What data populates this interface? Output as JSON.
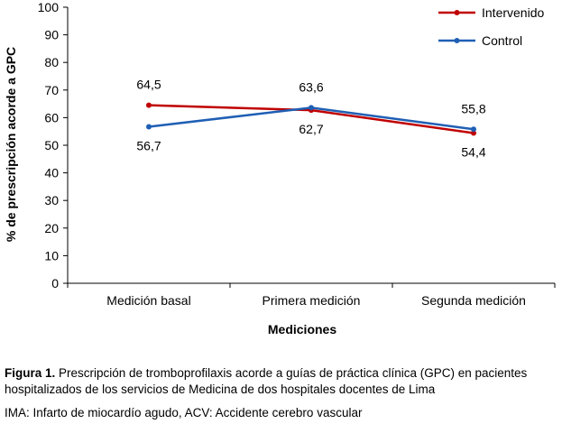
{
  "chart_data": {
    "type": "line",
    "categories": [
      "Medición basal",
      "Primera medición",
      "Segunda medición"
    ],
    "series": [
      {
        "name": "Intervenido",
        "values": [
          64.5,
          62.7,
          54.4
        ],
        "labels": [
          "64,5",
          "62,7",
          "54,4"
        ],
        "color": "#c00000"
      },
      {
        "name": "Control",
        "values": [
          56.7,
          63.6,
          55.8
        ],
        "labels": [
          "56,7",
          "63,6",
          "55,8"
        ],
        "color": "#1f5fb4"
      }
    ],
    "ylim": [
      0,
      100
    ],
    "yticks": [
      "0",
      "10",
      "20",
      "30",
      "40",
      "50",
      "60",
      "70",
      "80",
      "90",
      "100"
    ],
    "xlabel": "Mediciones",
    "ylabel": "% de prescripción acorde a GPC",
    "legend_position": "top-right",
    "grid": false
  },
  "caption": {
    "figure_label": "Figura 1.",
    "text": " Prescripción de tromboprofilaxis acorde a guías de práctica clínica (GPC) en pacientes hospitalizados de los servicios de Medicina de dos hospitales docentes de Lima",
    "abbreviations": "IMA: Infarto de miocardío agudo, ACV: Accidente cerebro vascular"
  }
}
